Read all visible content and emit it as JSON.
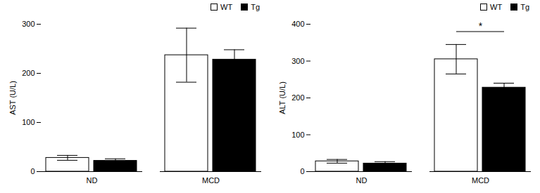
{
  "chart_data": [
    {
      "type": "bar",
      "categories": [
        "ND",
        "MCD"
      ],
      "series": [
        {
          "name": "WT",
          "color": "#ffffff",
          "values": [
            28,
            237
          ],
          "errors": [
            5,
            55
          ]
        },
        {
          "name": "Tg",
          "color": "#000000",
          "values": [
            22,
            228
          ],
          "errors": [
            4,
            20
          ]
        }
      ],
      "ylabel": "AST (U/L)",
      "ylim": [
        0,
        300
      ],
      "yticks": [
        0,
        100,
        200,
        300
      ],
      "legend": "upper right"
    },
    {
      "type": "bar",
      "categories": [
        "ND",
        "MCD"
      ],
      "series": [
        {
          "name": "WT",
          "color": "#ffffff",
          "values": [
            28,
            305
          ],
          "errors": [
            5,
            40
          ]
        },
        {
          "name": "Tg",
          "color": "#000000",
          "values": [
            22,
            228
          ],
          "errors": [
            5,
            12
          ]
        }
      ],
      "ylabel": "ALT (U/L)",
      "ylim": [
        0,
        400
      ],
      "yticks": [
        0,
        100,
        200,
        300,
        400
      ],
      "legend": "upper right",
      "annotations": [
        {
          "text": "*",
          "category": "MCD",
          "y": 380
        }
      ]
    }
  ]
}
